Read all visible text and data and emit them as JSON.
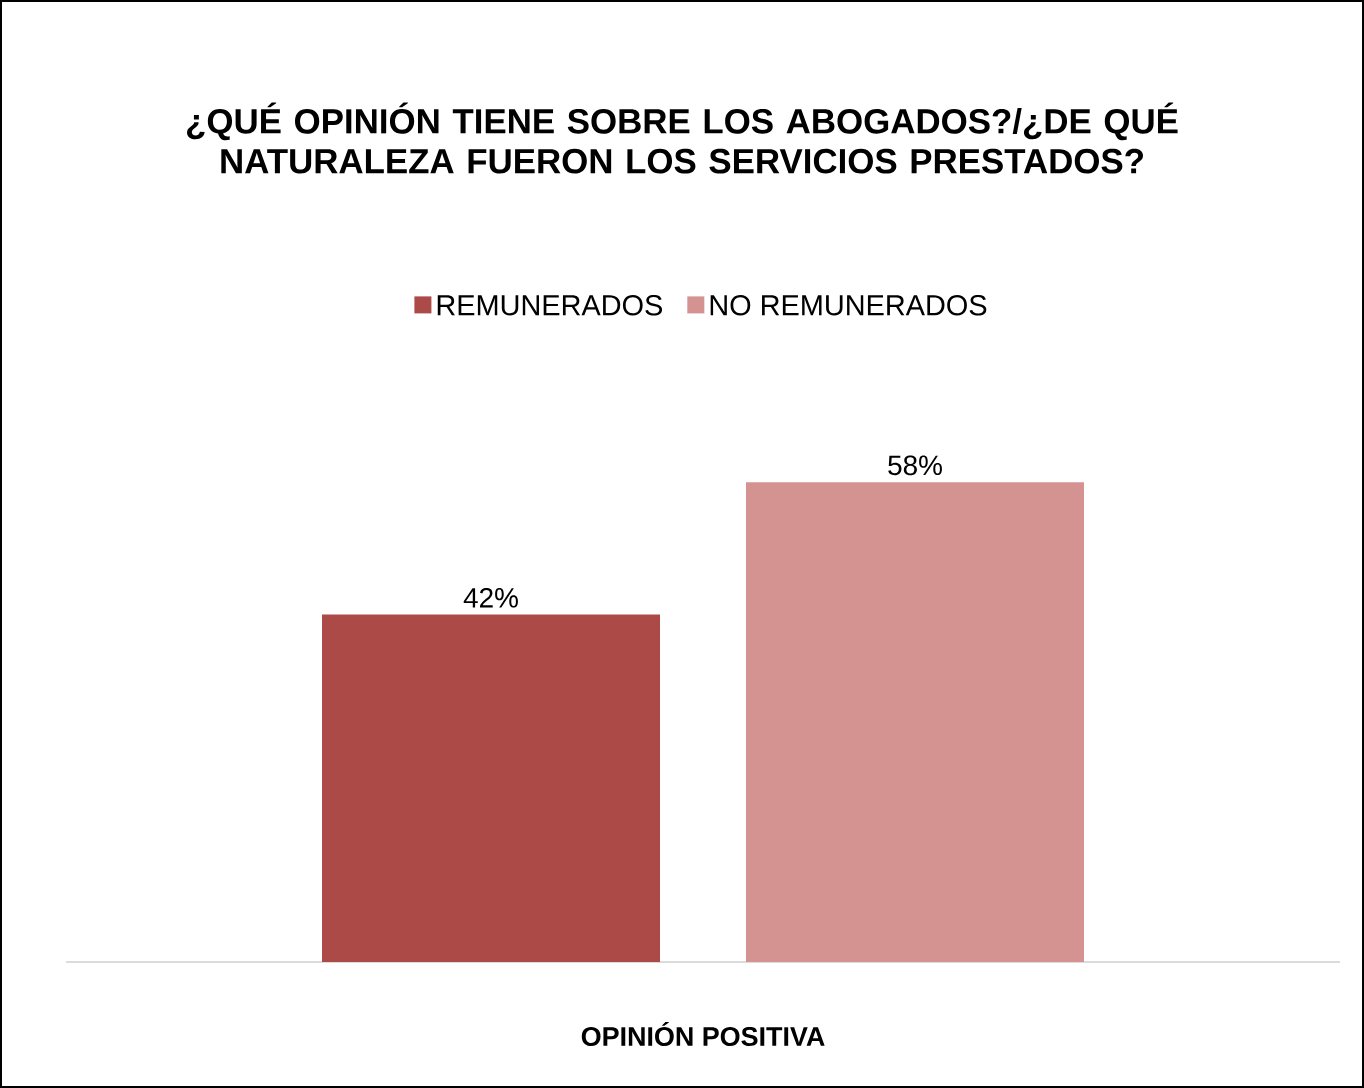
{
  "chart_data": {
    "type": "bar",
    "title": "¿QUÉ OPINIÓN TIENE SOBRE LOS ABOGADOS?/¿DE QUÉ NATURALEZA FUERON LOS SERVICIOS PRESTADOS?",
    "xlabel": "OPINIÓN POSITIVA",
    "categories": [
      null
    ],
    "legend": "top",
    "series": [
      {
        "name": "REMUNERADOS",
        "color": "#ab4a47",
        "values": [
          42
        ],
        "value_labels": [
          "42%"
        ]
      },
      {
        "name": "NO REMUNERADOS",
        "color": "#d49291",
        "values": [
          58
        ],
        "value_labels": [
          "58%"
        ]
      }
    ]
  }
}
